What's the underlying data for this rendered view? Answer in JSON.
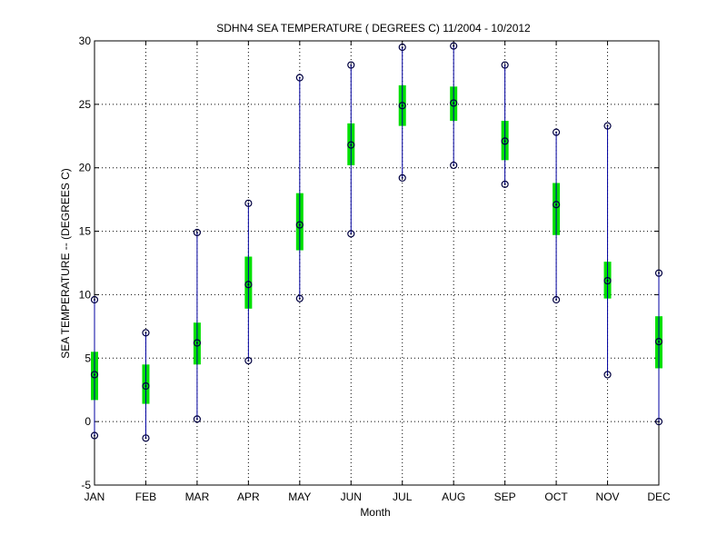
{
  "chart_data": {
    "type": "boxplot",
    "title": "SDHN4  SEA TEMPERATURE ( DEGREES C) 11/2004 - 10/2012",
    "xlabel": "Month",
    "ylabel": "SEA TEMPERATURE -- (DEGREES C)",
    "ylim": [
      -5,
      30
    ],
    "yticks": [
      -5,
      0,
      5,
      10,
      15,
      20,
      25,
      30
    ],
    "grid": true,
    "categories": [
      "JAN",
      "FEB",
      "MAR",
      "APR",
      "MAY",
      "JUN",
      "JUL",
      "AUG",
      "SEP",
      "OCT",
      "NOV",
      "DEC"
    ],
    "series": [
      {
        "name": "",
        "min": [
          -1.1,
          -1.3,
          0.2,
          4.8,
          9.7,
          14.8,
          19.2,
          20.2,
          18.7,
          9.6,
          3.7,
          0.0
        ],
        "max": [
          9.6,
          7.0,
          14.9,
          17.2,
          27.1,
          28.1,
          29.5,
          29.6,
          28.1,
          22.8,
          23.3,
          11.7
        ],
        "box_low": [
          1.7,
          1.4,
          4.5,
          8.9,
          13.5,
          20.2,
          23.3,
          23.7,
          20.6,
          14.7,
          9.7,
          4.2
        ],
        "box_high": [
          5.5,
          4.5,
          7.8,
          13.0,
          18.0,
          23.5,
          26.5,
          26.4,
          23.7,
          18.8,
          12.6,
          8.3
        ],
        "median": [
          3.7,
          2.8,
          6.2,
          10.8,
          15.5,
          21.8,
          24.9,
          25.1,
          22.1,
          17.1,
          11.1,
          6.3
        ]
      }
    ],
    "colors": {
      "whisker": "#0000a0",
      "box": "#00e000",
      "marker": "#000040",
      "grid": "#000000",
      "axis": "#000000"
    }
  }
}
